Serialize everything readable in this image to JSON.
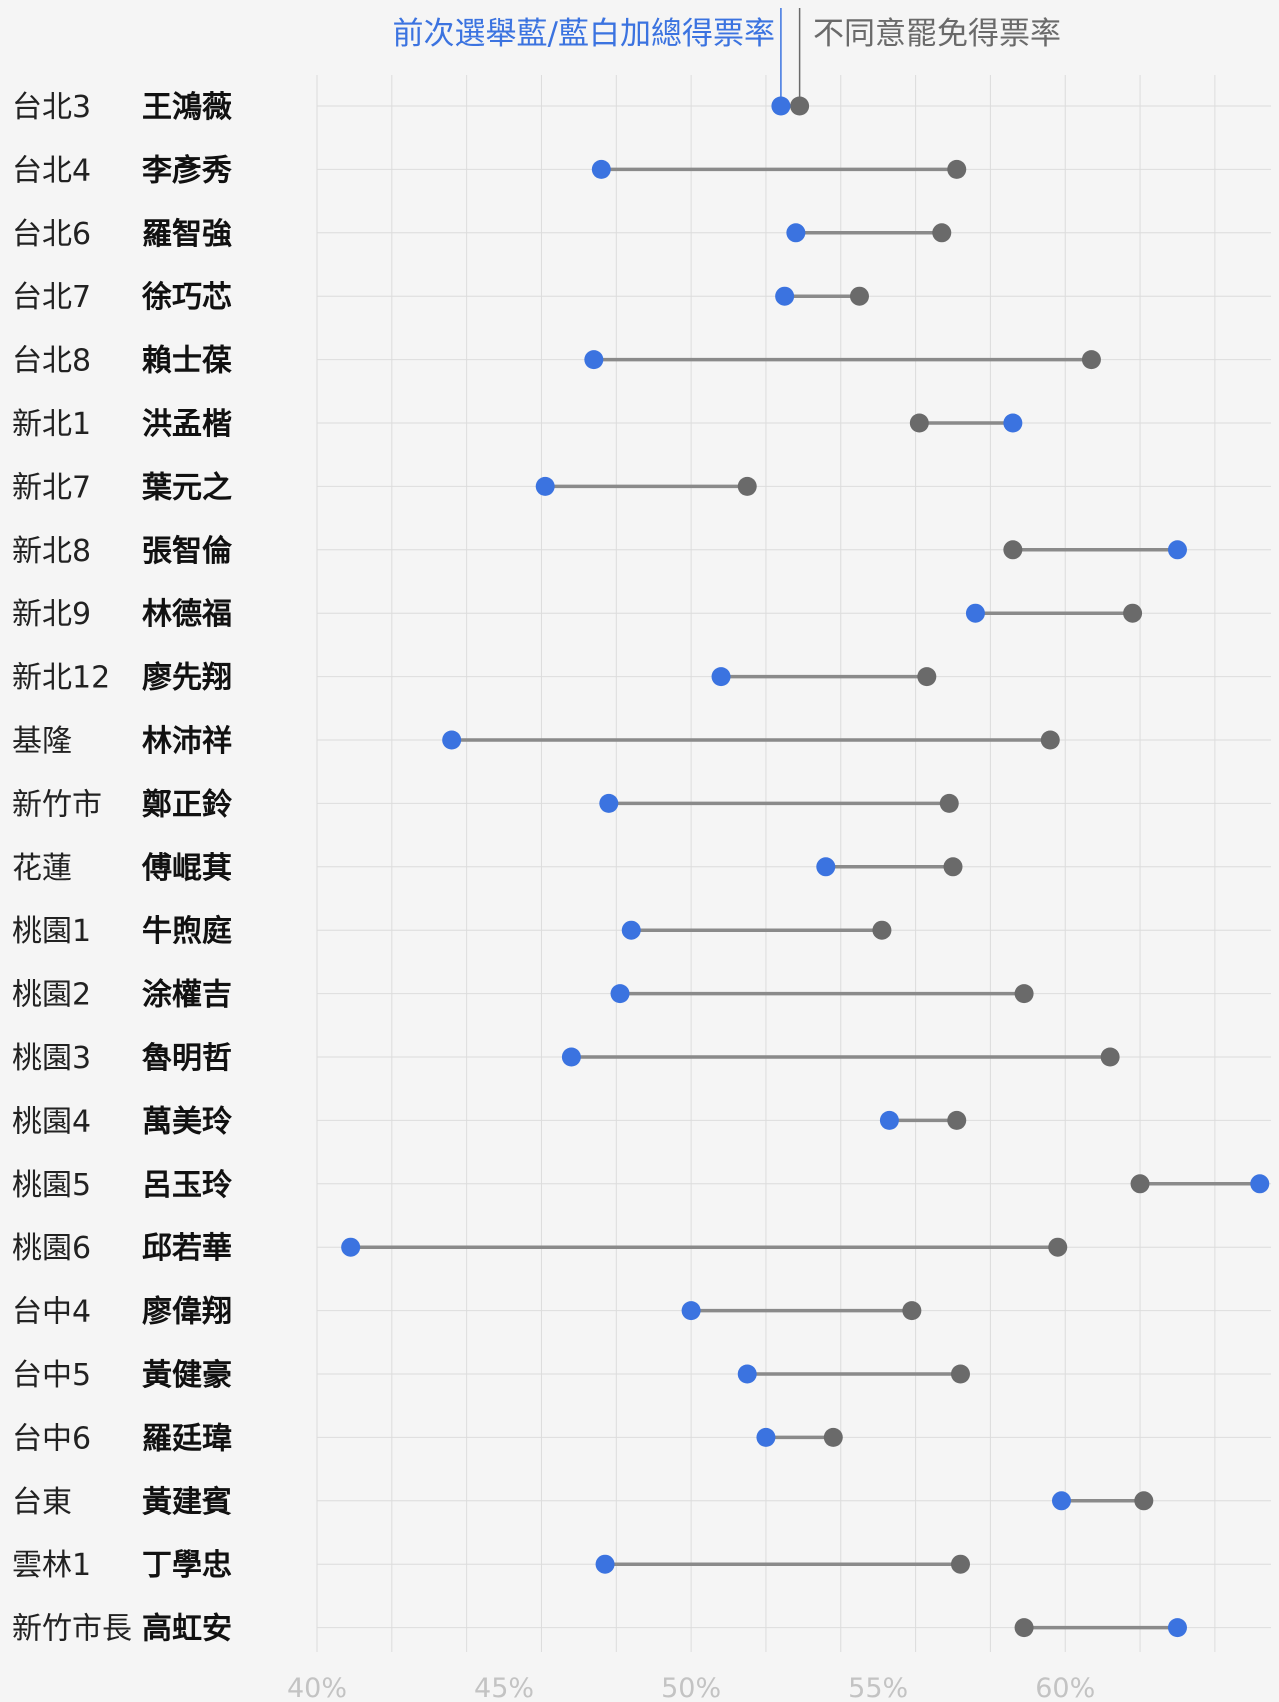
{
  "colors": {
    "previous": "#3b73e0",
    "recall": "#6a6a6a",
    "connector": "#8a8a8a",
    "grid": "#dcdcdc",
    "background": "#f5f5f5"
  },
  "legend": {
    "previous_label": "前次選舉藍/藍白加總得票率",
    "recall_label": "不同意罷免得票率"
  },
  "chart_data": {
    "type": "dumbbell",
    "xlim": [
      0.4,
      0.655
    ],
    "x_ticks": [
      {
        "value": 0.4,
        "label": "40%"
      },
      {
        "value": 0.45,
        "label": "45%"
      },
      {
        "value": 0.5,
        "label": "50%"
      },
      {
        "value": 0.55,
        "label": "55%"
      },
      {
        "value": 0.6,
        "label": "60%"
      }
    ],
    "x_gridlines": [
      0.4,
      0.42,
      0.44,
      0.46,
      0.48,
      0.5,
      0.52,
      0.54,
      0.56,
      0.58,
      0.6,
      0.62,
      0.64
    ],
    "series": [
      {
        "name": "前次選舉藍/藍白加總得票率",
        "key": "previous",
        "color": "#3b73e0"
      },
      {
        "name": "不同意罷免得票率",
        "key": "recall",
        "color": "#6a6a6a"
      }
    ],
    "rows": [
      {
        "district": "台北3",
        "name": "王鴻薇",
        "previous": 0.524,
        "recall": 0.529
      },
      {
        "district": "台北4",
        "name": "李彥秀",
        "previous": 0.476,
        "recall": 0.571
      },
      {
        "district": "台北6",
        "name": "羅智強",
        "previous": 0.528,
        "recall": 0.567
      },
      {
        "district": "台北7",
        "name": "徐巧芯",
        "previous": 0.525,
        "recall": 0.545
      },
      {
        "district": "台北8",
        "name": "賴士葆",
        "previous": 0.474,
        "recall": 0.607
      },
      {
        "district": "新北1",
        "name": "洪孟楷",
        "previous": 0.586,
        "recall": 0.561
      },
      {
        "district": "新北7",
        "name": "葉元之",
        "previous": 0.461,
        "recall": 0.515
      },
      {
        "district": "新北8",
        "name": "張智倫",
        "previous": 0.63,
        "recall": 0.586
      },
      {
        "district": "新北9",
        "name": "林德福",
        "previous": 0.576,
        "recall": 0.618
      },
      {
        "district": "新北12",
        "name": "廖先翔",
        "previous": 0.508,
        "recall": 0.563
      },
      {
        "district": "基隆",
        "name": "林沛祥",
        "previous": 0.436,
        "recall": 0.596
      },
      {
        "district": "新竹市",
        "name": "鄭正鈴",
        "previous": 0.478,
        "recall": 0.569
      },
      {
        "district": "花蓮",
        "name": "傅崐萁",
        "previous": 0.536,
        "recall": 0.57
      },
      {
        "district": "桃園1",
        "name": "牛煦庭",
        "previous": 0.484,
        "recall": 0.551
      },
      {
        "district": "桃園2",
        "name": "涂權吉",
        "previous": 0.481,
        "recall": 0.589
      },
      {
        "district": "桃園3",
        "name": "魯明哲",
        "previous": 0.468,
        "recall": 0.612
      },
      {
        "district": "桃園4",
        "name": "萬美玲",
        "previous": 0.553,
        "recall": 0.571
      },
      {
        "district": "桃園5",
        "name": "呂玉玲",
        "previous": 0.652,
        "recall": 0.62
      },
      {
        "district": "桃園6",
        "name": "邱若華",
        "previous": 0.409,
        "recall": 0.598
      },
      {
        "district": "台中4",
        "name": "廖偉翔",
        "previous": 0.5,
        "recall": 0.559
      },
      {
        "district": "台中5",
        "name": "黃健豪",
        "previous": 0.515,
        "recall": 0.572
      },
      {
        "district": "台中6",
        "name": "羅廷瑋",
        "previous": 0.52,
        "recall": 0.538
      },
      {
        "district": "台東",
        "name": "黃建賓",
        "previous": 0.599,
        "recall": 0.621
      },
      {
        "district": "雲林1",
        "name": "丁學忠",
        "previous": 0.477,
        "recall": 0.572
      },
      {
        "district": "新竹市長",
        "name": "高虹安",
        "previous": 0.63,
        "recall": 0.589
      }
    ]
  }
}
